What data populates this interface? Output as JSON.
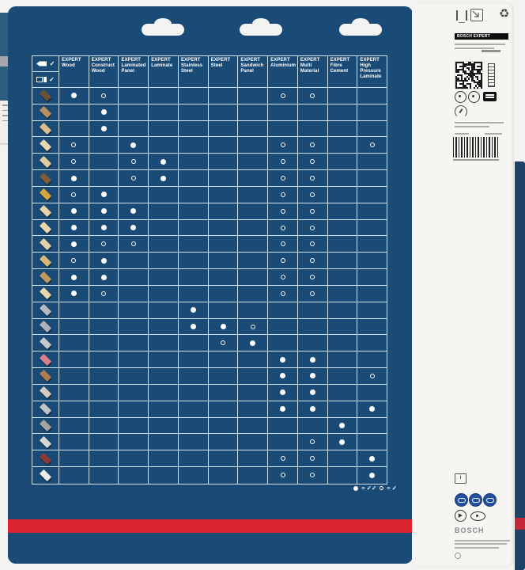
{
  "card": {
    "hang_hole_count": 3,
    "legend": {
      "filled_meaning": "= ✓✓",
      "hollow_meaning": "= ✓"
    },
    "table": {
      "machine_header": [
        {
          "icon": "jigsaw-blade-icon",
          "check": "✓"
        },
        {
          "icon": "t-shank-blade-icon",
          "check": "✓"
        }
      ],
      "columns": [
        {
          "brand": "EXPERT",
          "name": "Wood"
        },
        {
          "brand": "EXPERT",
          "name": "Construct Wood"
        },
        {
          "brand": "EXPERT",
          "name": "Laminated Panel"
        },
        {
          "brand": "EXPERT",
          "name": "Laminate"
        },
        {
          "brand": "EXPERT",
          "name": "Stainless Steel"
        },
        {
          "brand": "EXPERT",
          "name": "Steel"
        },
        {
          "brand": "EXPERT",
          "name": "Sandwich Panel"
        },
        {
          "brand": "EXPERT",
          "name": "Aluminium"
        },
        {
          "brand": "EXPERT",
          "name": "Multi Material"
        },
        {
          "brand": "EXPERT",
          "name": "Fibre Cement"
        },
        {
          "brand": "EXPERT",
          "name": "High Pressure Laminate"
        }
      ],
      "cell_values_key": {
        "2": "filled-dot (best)",
        "1": "hollow-dot (suitable)",
        "0": "empty"
      },
      "rows": [
        {
          "material": "old-dark-wood",
          "color": "#6b5138",
          "cells": [
            2,
            1,
            0,
            0,
            0,
            0,
            0,
            1,
            1,
            0,
            0
          ]
        },
        {
          "material": "rough-sawn-timber",
          "color": "#b5905e",
          "cells": [
            0,
            2,
            0,
            0,
            0,
            0,
            0,
            0,
            0,
            0,
            0
          ]
        },
        {
          "material": "construction-beam",
          "color": "#d9bc8e",
          "cells": [
            0,
            2,
            0,
            0,
            0,
            0,
            0,
            0,
            0,
            0,
            0
          ]
        },
        {
          "material": "shuttering-plywood",
          "color": "#e6d6b2",
          "cells": [
            1,
            0,
            2,
            0,
            0,
            0,
            0,
            1,
            1,
            0,
            1
          ]
        },
        {
          "material": "chipboard",
          "color": "#e3cc9c",
          "cells": [
            1,
            0,
            1,
            2,
            0,
            0,
            0,
            1,
            1,
            0,
            0
          ]
        },
        {
          "material": "hardwood-board",
          "color": "#7c5c3c",
          "cells": [
            2,
            0,
            1,
            2,
            0,
            0,
            0,
            1,
            1,
            0,
            0
          ]
        },
        {
          "material": "osb-board",
          "color": "#d7a43f",
          "cells": [
            1,
            2,
            0,
            0,
            0,
            0,
            0,
            1,
            1,
            0,
            0
          ]
        },
        {
          "material": "softwood-panel",
          "color": "#e6d2a8",
          "cells": [
            2,
            2,
            2,
            0,
            0,
            0,
            0,
            1,
            1,
            0,
            0
          ]
        },
        {
          "material": "softwood-plank",
          "color": "#e8d6ae",
          "cells": [
            2,
            2,
            2,
            0,
            0,
            0,
            0,
            1,
            1,
            0,
            0
          ]
        },
        {
          "material": "glued-wood-panel",
          "color": "#e4d1a8",
          "cells": [
            2,
            1,
            1,
            0,
            0,
            0,
            0,
            1,
            1,
            0,
            0
          ]
        },
        {
          "material": "coarse-chipboard",
          "color": "#d9b87c",
          "cells": [
            1,
            2,
            0,
            0,
            0,
            0,
            0,
            1,
            1,
            0,
            0
          ]
        },
        {
          "material": "timber-stack",
          "color": "#c09a62",
          "cells": [
            2,
            2,
            0,
            0,
            0,
            0,
            0,
            1,
            1,
            0,
            0
          ]
        },
        {
          "material": "parquet-panel",
          "color": "#e7d6ad",
          "cells": [
            2,
            1,
            0,
            0,
            0,
            0,
            0,
            1,
            1,
            0,
            0
          ]
        },
        {
          "material": "steel-pipes",
          "color": "#b7bbc0",
          "cells": [
            0,
            0,
            0,
            0,
            2,
            0,
            0,
            0,
            0,
            0,
            0
          ]
        },
        {
          "material": "steel-profiles",
          "color": "#adb2b8",
          "cells": [
            0,
            0,
            0,
            0,
            2,
            2,
            1,
            0,
            0,
            0,
            0
          ]
        },
        {
          "material": "sandwich-panel",
          "color": "#c6c9cc",
          "cells": [
            0,
            0,
            0,
            0,
            0,
            1,
            2,
            0,
            0,
            0,
            0
          ]
        },
        {
          "material": "acrylic-sheet",
          "color": "#d8808c",
          "cells": [
            0,
            0,
            0,
            0,
            0,
            0,
            0,
            2,
            2,
            0,
            0
          ]
        },
        {
          "material": "copper-multilayer",
          "color": "#ad7b50",
          "cells": [
            0,
            0,
            0,
            0,
            0,
            0,
            0,
            2,
            2,
            0,
            1
          ]
        },
        {
          "material": "laminate-stack",
          "color": "#d3ccc0",
          "cells": [
            0,
            0,
            0,
            0,
            0,
            0,
            0,
            2,
            2,
            0,
            0
          ]
        },
        {
          "material": "aluminium-profiles",
          "color": "#c0c4c9",
          "cells": [
            0,
            0,
            0,
            0,
            0,
            0,
            0,
            2,
            2,
            0,
            2
          ]
        },
        {
          "material": "fibre-cement-board",
          "color": "#a3a3a0",
          "cells": [
            0,
            0,
            0,
            0,
            0,
            0,
            0,
            0,
            0,
            2,
            0
          ]
        },
        {
          "material": "plasterboard",
          "color": "#d6d6d4",
          "cells": [
            0,
            0,
            0,
            0,
            0,
            0,
            0,
            0,
            1,
            2,
            0
          ]
        },
        {
          "material": "hpl-dark-board",
          "color": "#8c3a3c",
          "cells": [
            0,
            0,
            0,
            0,
            0,
            0,
            0,
            1,
            1,
            0,
            2
          ]
        },
        {
          "material": "insulation-white-board",
          "color": "#eceae6",
          "cells": [
            0,
            0,
            0,
            0,
            0,
            0,
            0,
            1,
            1,
            0,
            2
          ]
        }
      ]
    }
  },
  "label_panel": {
    "brand_bar_text": "BOSCH EXPERT",
    "bosch_logo": "BOSCH",
    "recycle_symbol": "♻",
    "manual_symbol": "i",
    "icons": [
      "certification-icon",
      "arrow-box-icon",
      "recycling-triangle-icon",
      "qr-code",
      "ruler-icon",
      "blade-circle-icon",
      "dial-circle-icon",
      "black-chip-icon",
      "gauge-icon",
      "ean-barcode",
      "manual-icon",
      "safety-goggles-icon",
      "ear-protection-icon",
      "dust-mask-icon",
      "recycle-circle-icon",
      "eye-protection-icon"
    ]
  },
  "colors": {
    "card_navy": "#1a4b76",
    "grid_line": "#cfe2ee",
    "stripe_red": "#dd2531",
    "panel_white": "#f6f5f2",
    "safety_blue": "#20509e"
  }
}
